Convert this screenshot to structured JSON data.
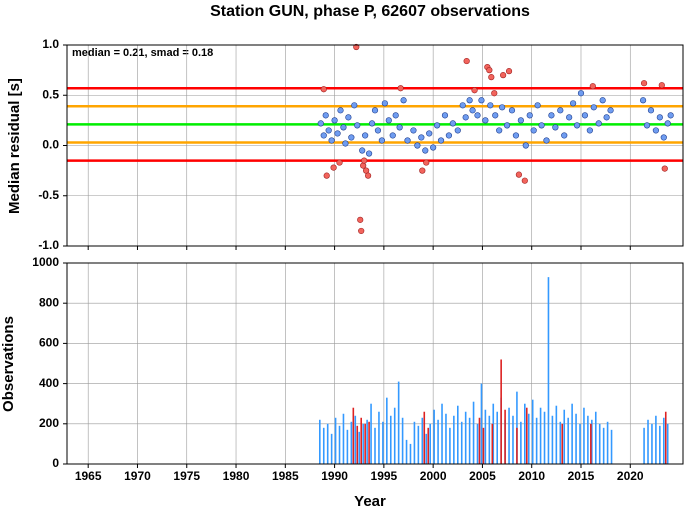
{
  "chart_data": [
    {
      "type": "scatter",
      "title": "Station GUN, phase P, 62607 observations",
      "ylabel": "Median residual [s]",
      "annotation": "median = 0.21, smad = 0.18",
      "xlim": [
        1962.85,
        2025.35
      ],
      "ylim": [
        -1.0,
        1.0
      ],
      "xticks": [
        1965,
        1970,
        1975,
        1980,
        1985,
        1990,
        1995,
        2000,
        2005,
        2010,
        2015,
        2020
      ],
      "yticks": [
        {
          "value": 1.0,
          "label": "1.0"
        },
        0.5,
        {
          "value": 0.0,
          "label": "0.0"
        },
        -0.5,
        {
          "value": -1.0,
          "label": "-1.0"
        }
      ],
      "grid": true,
      "reference_lines": [
        {
          "value": 0.57,
          "color": "#ff0000"
        },
        {
          "value": 0.39,
          "color": "#ffa500"
        },
        {
          "value": 0.21,
          "color": "#00ee00"
        },
        {
          "value": 0.03,
          "color": "#ffa500"
        },
        {
          "value": -0.15,
          "color": "#ff0000"
        }
      ],
      "series": [
        {
          "color": "#6f9cf0",
          "edge": "#1f3f8f",
          "x": [
            1988.6,
            1988.9,
            1989.1,
            1989.4,
            1989.7,
            1990.0,
            1990.3,
            1990.6,
            1990.9,
            1991.1,
            1991.4,
            1991.7,
            1992.0,
            1992.3,
            1992.8,
            1993.1,
            1993.5,
            1993.8,
            1994.1,
            1994.4,
            1994.8,
            1995.1,
            1995.5,
            1995.9,
            1996.2,
            1996.6,
            1997.0,
            1997.4,
            1998.0,
            1998.4,
            1998.8,
            1999.2,
            1999.6,
            2000.0,
            2000.4,
            2000.8,
            2001.2,
            2001.6,
            2002.0,
            2002.5,
            2003.0,
            2003.3,
            2003.7,
            2004.0,
            2004.5,
            2004.9,
            2005.3,
            2005.8,
            2006.3,
            2006.7,
            2007.0,
            2007.5,
            2008.0,
            2008.4,
            2008.9,
            2009.4,
            2009.8,
            2010.2,
            2010.6,
            2011.0,
            2011.5,
            2012.0,
            2012.4,
            2012.9,
            2013.3,
            2013.8,
            2014.2,
            2014.6,
            2015.0,
            2015.4,
            2015.9,
            2016.3,
            2016.8,
            2017.2,
            2017.6,
            2018.0,
            2021.3,
            2021.7,
            2022.1,
            2022.6,
            2023.0,
            2023.4,
            2023.8,
            2024.1
          ],
          "values": [
            0.22,
            0.1,
            0.3,
            0.15,
            0.05,
            0.25,
            0.12,
            0.35,
            0.18,
            0.02,
            0.28,
            0.08,
            0.4,
            0.2,
            -0.05,
            0.1,
            -0.08,
            0.22,
            0.35,
            0.15,
            0.05,
            0.42,
            0.25,
            0.1,
            0.3,
            0.18,
            0.45,
            0.05,
            0.15,
            0.0,
            0.08,
            -0.05,
            0.12,
            -0.02,
            0.2,
            0.05,
            0.3,
            0.1,
            0.22,
            0.15,
            0.4,
            0.28,
            0.45,
            0.35,
            0.3,
            0.45,
            0.25,
            0.4,
            0.3,
            0.15,
            0.38,
            0.2,
            0.35,
            0.1,
            0.25,
            0.0,
            0.3,
            0.15,
            0.4,
            0.2,
            0.05,
            0.3,
            0.18,
            0.35,
            0.1,
            0.28,
            0.42,
            0.2,
            0.52,
            0.3,
            0.15,
            0.38,
            0.22,
            0.45,
            0.28,
            0.35,
            0.45,
            0.2,
            0.35,
            0.15,
            0.28,
            0.08,
            0.22,
            0.3
          ]
        },
        {
          "color": "#f2645c",
          "edge": "#a02020",
          "x": [
            1988.9,
            1989.2,
            1989.9,
            1990.5,
            1992.2,
            1992.6,
            1992.7,
            1992.9,
            1993.0,
            1993.2,
            1993.4,
            1996.7,
            1998.9,
            1999.3,
            2003.4,
            2004.2,
            2005.5,
            2005.7,
            2005.9,
            2006.2,
            2007.1,
            2007.7,
            2008.7,
            2009.3,
            2016.2,
            2021.4,
            2023.2,
            2023.5
          ],
          "values": [
            0.56,
            -0.3,
            -0.22,
            -0.17,
            0.98,
            -0.74,
            -0.85,
            -0.2,
            -0.15,
            -0.25,
            -0.3,
            0.57,
            -0.25,
            -0.17,
            0.84,
            0.55,
            0.78,
            0.75,
            0.68,
            0.52,
            0.7,
            0.74,
            -0.29,
            -0.35,
            0.59,
            0.62,
            0.6,
            -0.23
          ]
        }
      ]
    },
    {
      "type": "bar",
      "xlabel": "Year",
      "ylabel": "Observations",
      "xlim": [
        1962.85,
        2025.35
      ],
      "ylim": [
        0,
        1000
      ],
      "xticks": [
        1965,
        1970,
        1975,
        1980,
        1985,
        1990,
        1995,
        2000,
        2005,
        2010,
        2015,
        2020
      ],
      "yticks": [
        0,
        200,
        400,
        600,
        800,
        1000
      ],
      "grid": true,
      "series": [
        {
          "color": "#3399ff",
          "x": [
            1988.5,
            1988.9,
            1989.3,
            1989.7,
            1990.1,
            1990.5,
            1990.9,
            1991.3,
            1991.7,
            1992.1,
            1992.5,
            1992.9,
            1993.3,
            1993.7,
            1994.1,
            1994.5,
            1994.9,
            1995.3,
            1995.7,
            1996.1,
            1996.5,
            1996.9,
            1997.3,
            1997.7,
            1998.1,
            1998.5,
            1998.9,
            1999.3,
            1999.7,
            2000.1,
            2000.5,
            2000.9,
            2001.3,
            2001.7,
            2002.1,
            2002.5,
            2002.9,
            2003.3,
            2003.7,
            2004.1,
            2004.5,
            2004.9,
            2005.3,
            2005.7,
            2006.1,
            2006.5,
            2006.9,
            2007.3,
            2007.7,
            2008.1,
            2008.5,
            2008.9,
            2009.3,
            2009.7,
            2010.1,
            2010.5,
            2010.9,
            2011.3,
            2011.7,
            2012.1,
            2012.5,
            2012.9,
            2013.3,
            2013.7,
            2014.1,
            2014.5,
            2014.9,
            2015.3,
            2015.7,
            2016.1,
            2016.5,
            2016.9,
            2017.3,
            2017.7,
            2018.1,
            2021.4,
            2021.8,
            2022.2,
            2022.6,
            2023.0,
            2023.4,
            2023.8
          ],
          "values": [
            220,
            180,
            200,
            150,
            230,
            190,
            250,
            170,
            210,
            240,
            160,
            200,
            220,
            300,
            180,
            260,
            210,
            330,
            240,
            280,
            410,
            230,
            120,
            100,
            210,
            190,
            230,
            150,
            200,
            270,
            220,
            300,
            250,
            180,
            240,
            290,
            210,
            260,
            230,
            310,
            200,
            400,
            270,
            240,
            300,
            260,
            330,
            220,
            280,
            240,
            360,
            210,
            300,
            250,
            320,
            230,
            280,
            260,
            930,
            240,
            290,
            210,
            270,
            230,
            300,
            250,
            200,
            280,
            240,
            220,
            260,
            200,
            180,
            210,
            170,
            180,
            220,
            200,
            240,
            190,
            230,
            200
          ]
        },
        {
          "color": "#dd2222",
          "x": [
            1991.9,
            1992.3,
            1992.7,
            1993.1,
            1993.5,
            1999.1,
            1999.5,
            2004.7,
            2005.1,
            2006.0,
            2006.9,
            2007.3,
            2008.5,
            2009.5,
            2013.1,
            2016.0,
            2023.6
          ],
          "values": [
            280,
            190,
            230,
            200,
            210,
            260,
            180,
            230,
            180,
            200,
            520,
            270,
            180,
            280,
            200,
            200,
            260
          ]
        }
      ]
    }
  ]
}
